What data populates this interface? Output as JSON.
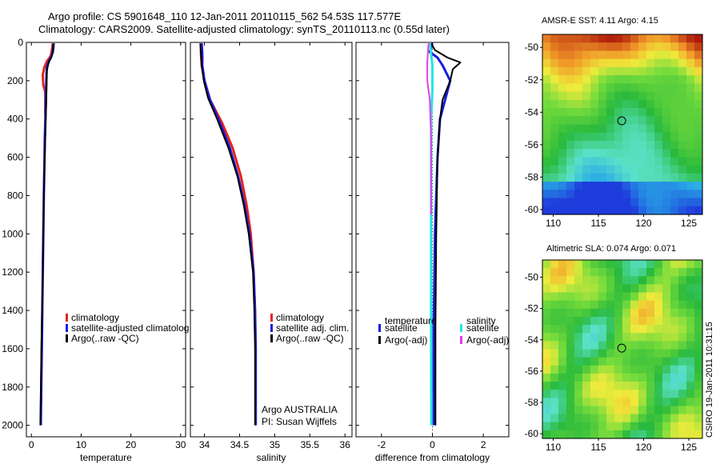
{
  "title_line1": "Argo profile: CS 5901648_110 12-Jan-2011 20110115_562 54.53S 117.577E",
  "title_line2": "Climatology: CARS2009. Satellite-adjusted climatology: synTS_20110113.nc (0.55d later)",
  "credit": "CSIRO 19-Jan-2011 10:31:15",
  "colors": {
    "red": "#e8231c",
    "blue": "#1c1cdc",
    "black": "#000000",
    "cyan": "#22e6e6",
    "magenta": "#e63ce6"
  },
  "chart_data": [
    {
      "type": "line",
      "name": "temperature-panel",
      "xlabel": "temperature",
      "xlim": [
        -1,
        31
      ],
      "xticks": [
        "0",
        "10",
        "20",
        "30"
      ],
      "xtick_values": [
        0,
        10,
        20,
        30
      ],
      "ylim": [
        0,
        2060
      ],
      "yticks": [
        "0",
        "200",
        "400",
        "600",
        "800",
        "1000",
        "1200",
        "1400",
        "1600",
        "1800",
        "2000"
      ],
      "ytick_values": [
        0,
        200,
        400,
        600,
        800,
        1000,
        1200,
        1400,
        1600,
        1800,
        2000
      ],
      "legend": [
        "climatology",
        "satellite-adjusted climatolog",
        "Argo(..raw -QC)"
      ],
      "series": [
        {
          "name": "climatology",
          "color": "red",
          "points": [
            [
              4.3,
              5
            ],
            [
              4.2,
              30
            ],
            [
              3.9,
              70
            ],
            [
              3.1,
              100
            ],
            [
              2.6,
              130
            ],
            [
              2.3,
              170
            ],
            [
              2.4,
              220
            ],
            [
              2.8,
              260
            ],
            [
              2.8,
              300
            ],
            [
              2.8,
              380
            ]
          ]
        },
        {
          "name": "satellite-adjusted climatology",
          "color": "blue",
          "points": [
            [
              4.5,
              5
            ],
            [
              4.4,
              30
            ],
            [
              4.3,
              50
            ],
            [
              3.9,
              80
            ],
            [
              3.5,
              100
            ],
            [
              3.1,
              130
            ],
            [
              3.0,
              200
            ],
            [
              2.9,
              300
            ],
            [
              2.7,
              500
            ],
            [
              2.5,
              800
            ],
            [
              2.3,
              1200
            ],
            [
              2.1,
              1600
            ],
            [
              1.9,
              2000
            ]
          ]
        },
        {
          "name": "Argo(..raw -QC)",
          "color": "black",
          "points": [
            [
              4.4,
              5
            ],
            [
              4.3,
              50
            ],
            [
              4.0,
              80
            ],
            [
              3.5,
              100
            ],
            [
              3.1,
              150
            ],
            [
              3.0,
              300
            ],
            [
              2.8,
              500
            ],
            [
              2.5,
              800
            ],
            [
              2.3,
              1200
            ],
            [
              2.0,
              1600
            ],
            [
              1.8,
              2000
            ]
          ]
        }
      ],
      "annotations": []
    },
    {
      "type": "line",
      "name": "salinity-panel",
      "xlabel": "salinity",
      "xlim": [
        33.8,
        36.1
      ],
      "xticks": [
        "34",
        "34.5",
        "35",
        "35.5",
        "36"
      ],
      "xtick_values": [
        34,
        34.5,
        35,
        35.5,
        36
      ],
      "ylim": [
        0,
        2060
      ],
      "yticks": [],
      "ytick_values": [],
      "legend": [
        "climatology",
        "satellite adj. clim.",
        "Argo(..raw -QC)"
      ],
      "series": [
        {
          "name": "climatology",
          "color": "red",
          "points": [
            [
              33.95,
              5
            ],
            [
              33.95,
              60
            ],
            [
              33.96,
              120
            ],
            [
              34.0,
              200
            ],
            [
              34.08,
              300
            ],
            [
              34.25,
              420
            ],
            [
              34.4,
              550
            ],
            [
              34.52,
              700
            ],
            [
              34.6,
              850
            ],
            [
              34.66,
              1000
            ],
            [
              34.7,
              1200
            ],
            [
              34.72,
              1400
            ],
            [
              34.72,
              1500
            ]
          ]
        },
        {
          "name": "satellite adj. clim.",
          "color": "blue",
          "points": [
            [
              33.96,
              5
            ],
            [
              33.97,
              60
            ],
            [
              33.97,
              120
            ],
            [
              34.0,
              200
            ],
            [
              34.08,
              300
            ],
            [
              34.22,
              420
            ],
            [
              34.36,
              550
            ],
            [
              34.48,
              700
            ],
            [
              34.57,
              850
            ],
            [
              34.64,
              1000
            ],
            [
              34.7,
              1200
            ],
            [
              34.72,
              1400
            ],
            [
              34.73,
              1600
            ],
            [
              34.73,
              1800
            ],
            [
              34.73,
              2000
            ]
          ]
        },
        {
          "name": "Argo(..raw -QC)",
          "color": "black",
          "points": [
            [
              33.94,
              5
            ],
            [
              33.95,
              60
            ],
            [
              33.96,
              120
            ],
            [
              33.99,
              200
            ],
            [
              34.05,
              290
            ],
            [
              34.18,
              400
            ],
            [
              34.34,
              550
            ],
            [
              34.47,
              700
            ],
            [
              34.56,
              850
            ],
            [
              34.63,
              1000
            ],
            [
              34.69,
              1200
            ],
            [
              34.71,
              1400
            ],
            [
              34.72,
              1600
            ],
            [
              34.72,
              1800
            ],
            [
              34.72,
              2000
            ]
          ]
        }
      ],
      "annotations": [
        "Argo AUSTRALIA",
        "PI: Susan Wijffels"
      ]
    },
    {
      "type": "line",
      "name": "difference-panel",
      "xlabel": "difference from climatology",
      "xlim": [
        -3,
        3
      ],
      "xticks": [
        "-2",
        "0",
        "2"
      ],
      "xtick_values": [
        -2,
        0,
        2
      ],
      "ylim": [
        0,
        2060
      ],
      "yticks": [],
      "ytick_values": [],
      "legend_titles": [
        "temperature",
        "salinity"
      ],
      "legend": [
        "satellite",
        "Argo(-adj)",
        "satellite",
        "Argo(-adj)"
      ],
      "series": [
        {
          "name": "temperature satellite",
          "color": "blue",
          "points": [
            [
              0.0,
              5
            ],
            [
              -0.1,
              50
            ],
            [
              0.2,
              80
            ],
            [
              0.4,
              120
            ],
            [
              0.7,
              200
            ],
            [
              0.5,
              300
            ],
            [
              0.3,
              400
            ],
            [
              0.2,
              600
            ],
            [
              0.1,
              1000
            ],
            [
              0.05,
              1500
            ],
            [
              0.05,
              2000
            ]
          ]
        },
        {
          "name": "temperature Argo(-adj)",
          "color": "black",
          "points": [
            [
              -0.05,
              5
            ],
            [
              0.1,
              40
            ],
            [
              0.6,
              80
            ],
            [
              1.1,
              105
            ],
            [
              0.8,
              140
            ],
            [
              0.7,
              200
            ],
            [
              0.4,
              300
            ],
            [
              0.3,
              400
            ],
            [
              0.2,
              600
            ],
            [
              0.15,
              1000
            ],
            [
              0.12,
              1500
            ],
            [
              0.12,
              2000
            ]
          ]
        },
        {
          "name": "salinity satellite",
          "color": "cyan",
          "points": [
            [
              -0.1,
              5
            ],
            [
              -0.05,
              60
            ],
            [
              0.0,
              120
            ],
            [
              0.0,
              250
            ],
            [
              -0.05,
              400
            ],
            [
              -0.05,
              600
            ],
            [
              -0.05,
              1000
            ],
            [
              -0.05,
              1500
            ],
            [
              -0.04,
              2000
            ]
          ]
        },
        {
          "name": "salinity Argo(-adj)",
          "color": "magenta",
          "points": [
            [
              -0.15,
              5
            ],
            [
              -0.2,
              100
            ],
            [
              -0.2,
              200
            ],
            [
              -0.1,
              300
            ],
            [
              -0.05,
              500
            ],
            [
              -0.05,
              900
            ]
          ]
        }
      ],
      "annotations": []
    }
  ],
  "maps": [
    {
      "title": "AMSR-E SST: 4.11 Argo: 4.15",
      "xticks": [
        "110",
        "115",
        "120",
        "125"
      ],
      "xtick_values": [
        110,
        115,
        120,
        125
      ],
      "yticks": [
        "-50",
        "-52",
        "-54",
        "-56",
        "-58",
        "-60"
      ],
      "ytick_values": [
        -50,
        -52,
        -54,
        -56,
        -58,
        -60
      ],
      "xlim": [
        108.8,
        126.5
      ],
      "ylim": [
        -60.3,
        -49.2
      ],
      "marker": [
        117.577,
        -54.53
      ],
      "field": "sst"
    },
    {
      "title": "Altimetric SLA: 0.074 Argo: 0.071",
      "xticks": [
        "110",
        "115",
        "120",
        "125"
      ],
      "xtick_values": [
        110,
        115,
        120,
        125
      ],
      "yticks": [
        "-50",
        "-52",
        "-54",
        "-56",
        "-58",
        "-60"
      ],
      "ytick_values": [
        -50,
        -52,
        -54,
        -56,
        -58,
        -60
      ],
      "xlim": [
        108.8,
        126.5
      ],
      "ylim": [
        -60.3,
        -48.9
      ],
      "marker": [
        117.577,
        -54.53
      ],
      "field": "sla"
    }
  ]
}
